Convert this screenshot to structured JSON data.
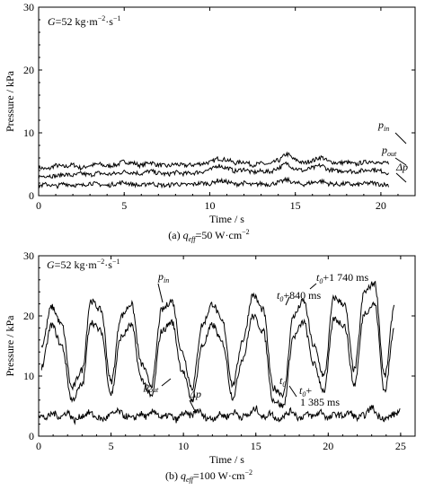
{
  "chart_data": [
    {
      "type": "line",
      "panel_caption": "(a) q_eff=50 W·cm⁻²",
      "caption_prefix": "(a) ",
      "caption_var": "q",
      "caption_sub": "eff",
      "caption_value": "=50 W·cm",
      "caption_sup": "−2",
      "annotation": {
        "var": "G",
        "text": "=52 kg·m",
        "sup1": "−2",
        "mid": "·s",
        "sup2": "−1"
      },
      "xlabel": "Time / s",
      "ylabel": "Pressure / kPa",
      "xlim": [
        0,
        22
      ],
      "ylim": [
        0,
        30
      ],
      "xticks": [
        0,
        5,
        10,
        15,
        20
      ],
      "yticks": [
        0,
        10,
        20,
        30
      ],
      "series": [
        {
          "name": "p_in",
          "label_main": "p",
          "label_sub": "in",
          "x": [
            0,
            0.5,
            1,
            1.5,
            2,
            2.5,
            3,
            3.5,
            4,
            4.5,
            5,
            5.5,
            6,
            6.5,
            7,
            7.5,
            8,
            8.5,
            9,
            9.5,
            10,
            10.5,
            11,
            11.5,
            12,
            12.5,
            13,
            13.5,
            14,
            14.5,
            15,
            15.5,
            16,
            16.5,
            17,
            17.5,
            18,
            18.5,
            19,
            19.5,
            20,
            20.5
          ],
          "values": [
            4.5,
            4.2,
            4.8,
            4.6,
            4.9,
            4.4,
            4.8,
            5.0,
            4.7,
            4.9,
            5.4,
            5.2,
            4.8,
            5.3,
            4.9,
            4.7,
            5.0,
            4.8,
            4.9,
            5.1,
            5.3,
            5.9,
            5.7,
            5.2,
            5.4,
            4.9,
            5.1,
            5.0,
            5.6,
            6.6,
            5.7,
            5.2,
            5.6,
            6.1,
            5.4,
            5.2,
            5.3,
            5.0,
            5.3,
            5.5,
            5.1,
            5.2
          ]
        },
        {
          "name": "p_out",
          "label_main": "p",
          "label_sub": "out",
          "x": [
            0,
            0.5,
            1,
            1.5,
            2,
            2.5,
            3,
            3.5,
            4,
            4.5,
            5,
            5.5,
            6,
            6.5,
            7,
            7.5,
            8,
            8.5,
            9,
            9.5,
            10,
            10.5,
            11,
            11.5,
            12,
            12.5,
            13,
            13.5,
            14,
            14.5,
            15,
            15.5,
            16,
            16.5,
            17,
            17.5,
            18,
            18.5,
            19,
            19.5,
            20,
            20.5
          ],
          "values": [
            3.0,
            3.2,
            3.1,
            3.4,
            3.2,
            3.5,
            3.3,
            3.6,
            3.4,
            3.5,
            3.8,
            3.7,
            3.5,
            3.9,
            3.6,
            3.4,
            3.7,
            3.5,
            3.6,
            3.8,
            4.1,
            4.8,
            4.4,
            3.9,
            4.2,
            3.7,
            3.9,
            3.8,
            4.4,
            5.1,
            4.3,
            4.0,
            4.4,
            4.8,
            4.1,
            3.9,
            4.0,
            3.8,
            4.0,
            4.2,
            3.9,
            3.6
          ]
        },
        {
          "name": "Δp",
          "label_main": "Δp",
          "label_sub": "",
          "x": [
            0,
            0.5,
            1,
            1.5,
            2,
            2.5,
            3,
            3.5,
            4,
            4.5,
            5,
            5.5,
            6,
            6.5,
            7,
            7.5,
            8,
            8.5,
            9,
            9.5,
            10,
            10.5,
            11,
            11.5,
            12,
            12.5,
            13,
            13.5,
            14,
            14.5,
            15,
            15.5,
            16,
            16.5,
            17,
            17.5,
            18,
            18.5,
            19,
            19.5,
            20,
            20.5
          ],
          "values": [
            1.6,
            1.8,
            1.5,
            1.9,
            1.7,
            1.6,
            2.0,
            1.8,
            1.6,
            1.9,
            2.1,
            1.8,
            1.6,
            2.0,
            1.7,
            1.6,
            1.9,
            1.7,
            1.8,
            2.0,
            1.9,
            2.4,
            2.2,
            1.8,
            2.0,
            1.7,
            1.9,
            1.8,
            2.1,
            2.5,
            2.0,
            1.8,
            2.1,
            2.3,
            1.9,
            1.8,
            1.9,
            1.7,
            1.9,
            2.0,
            1.8,
            1.7
          ]
        }
      ]
    },
    {
      "type": "line",
      "panel_caption": "(b) q_eff=100 W·cm⁻²",
      "caption_prefix": "(b) ",
      "caption_var": "q",
      "caption_sub": "eff",
      "caption_value": "=100 W·cm",
      "caption_sup": "−2",
      "annotation": {
        "var": "G",
        "text": "=52 kg·m",
        "sup1": "−2",
        "mid": "·s",
        "sup2": "−1"
      },
      "xlabel": "Time / s",
      "ylabel": "Pressure / kPa",
      "xlim": [
        0,
        26
      ],
      "ylim": [
        0,
        30
      ],
      "xticks": [
        0,
        5,
        10,
        15,
        20,
        25
      ],
      "yticks": [
        0,
        10,
        20,
        30
      ],
      "series": [
        {
          "name": "p_in",
          "label_main": "p",
          "label_sub": "in",
          "x": [
            0.2,
            0.9,
            1.6,
            2.3,
            3.0,
            3.6,
            4.3,
            5.0,
            5.7,
            6.4,
            7.1,
            7.8,
            8.5,
            9.2,
            9.9,
            10.6,
            11.3,
            12.0,
            12.7,
            13.4,
            14.1,
            14.8,
            15.5,
            16.2,
            16.9,
            17.6,
            18.3,
            19.0,
            19.7,
            20.4,
            21.1,
            21.8,
            22.5,
            23.2,
            23.9,
            24.6
          ],
          "values": [
            15.0,
            21.5,
            18.5,
            8.0,
            11.0,
            22.5,
            21.0,
            9.0,
            20.0,
            22.0,
            12.0,
            8.5,
            21.0,
            22.5,
            14.0,
            8.0,
            18.5,
            22.0,
            19.0,
            8.5,
            16.0,
            23.5,
            21.0,
            8.0,
            7.0,
            20.0,
            22.5,
            15.0,
            10.0,
            23.0,
            22.0,
            11.0,
            24.0,
            25.5,
            10.0,
            22.0
          ]
        },
        {
          "name": "p_out",
          "label_main": "p",
          "label_sub": "out",
          "x": [
            0.2,
            0.9,
            1.6,
            2.3,
            3.0,
            3.6,
            4.3,
            5.0,
            5.7,
            6.4,
            7.1,
            7.8,
            8.5,
            9.2,
            9.9,
            10.6,
            11.3,
            12.0,
            12.7,
            13.4,
            14.1,
            14.8,
            15.5,
            16.2,
            16.9,
            17.6,
            18.3,
            19.0,
            19.7,
            20.4,
            21.1,
            21.8,
            22.5,
            23.2,
            23.9,
            24.6
          ],
          "values": [
            11.5,
            18.5,
            15.0,
            6.0,
            8.5,
            19.0,
            17.5,
            7.0,
            16.5,
            18.5,
            9.5,
            6.5,
            17.5,
            19.0,
            11.0,
            6.0,
            15.0,
            18.5,
            15.5,
            6.5,
            13.0,
            20.0,
            17.5,
            6.0,
            5.0,
            16.5,
            19.0,
            12.0,
            7.5,
            19.5,
            18.5,
            8.5,
            20.5,
            22.0,
            7.5,
            18.5
          ]
        },
        {
          "name": "Δp",
          "label_main": "Δp",
          "label_sub": "",
          "x": [
            0,
            0.5,
            1,
            1.5,
            2,
            2.5,
            3,
            3.5,
            4,
            4.5,
            5,
            5.5,
            6,
            6.5,
            7,
            7.5,
            8,
            8.5,
            9,
            9.5,
            10,
            10.5,
            11,
            11.5,
            12,
            12.5,
            13,
            13.5,
            14,
            14.5,
            15,
            15.5,
            16,
            16.5,
            17,
            17.5,
            18,
            18.5,
            19,
            19.5,
            20,
            20.5,
            21,
            21.5,
            22,
            22.5,
            23,
            23.5,
            24,
            24.5,
            25
          ],
          "values": [
            3.5,
            3.0,
            3.8,
            3.2,
            4.0,
            2.6,
            3.4,
            3.9,
            3.1,
            2.8,
            3.6,
            4.1,
            3.3,
            2.9,
            3.7,
            3.2,
            4.2,
            3.0,
            3.5,
            2.7,
            3.8,
            3.4,
            4.3,
            3.1,
            2.9,
            3.6,
            3.3,
            4.0,
            3.2,
            3.5,
            4.6,
            3.1,
            3.8,
            2.8,
            3.5,
            4.2,
            3.0,
            3.6,
            3.3,
            4.1,
            2.9,
            3.7,
            3.4,
            3.9,
            3.0,
            3.5,
            4.8,
            3.3,
            2.9,
            3.6,
            4.1
          ]
        }
      ],
      "annotations": [
        {
          "main": "t",
          "sub": "0",
          "rest": "+1 740 ms"
        },
        {
          "main": "t",
          "sub": "0",
          "rest": "+840 ms"
        },
        {
          "main": "t",
          "sub": "0",
          "rest": ""
        },
        {
          "main": "t",
          "sub": "0",
          "rest": "+"
        },
        {
          "main": "",
          "sub": "",
          "rest": "1 385 ms"
        }
      ]
    }
  ]
}
